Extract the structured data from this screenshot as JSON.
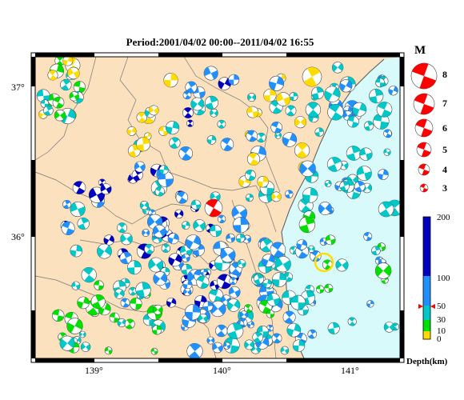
{
  "title": "Period:2001/04/02 00:00--2011/04/02 16:55",
  "lat_labels": [
    "37°",
    "36°"
  ],
  "lon_labels": [
    "139°",
    "140°",
    "141°"
  ],
  "magnitude_legend": {
    "title": "M",
    "labels": [
      "8",
      "7",
      "6",
      "5",
      "4",
      "3"
    ]
  },
  "depth_scale": {
    "title": "Depth(km)",
    "ticks": [
      "200",
      "100",
      "50",
      "30",
      "10",
      "0"
    ]
  },
  "colors": {
    "land": "#fbe1be",
    "sea": "#d8fafa",
    "depth_0_10": "#ffdc00",
    "depth_10_30": "#00e000",
    "depth_30_50": "#00c8c8",
    "depth_50_100": "#2090ff",
    "depth_100_200": "#0000c0",
    "legend_red": "#ff0000"
  }
}
